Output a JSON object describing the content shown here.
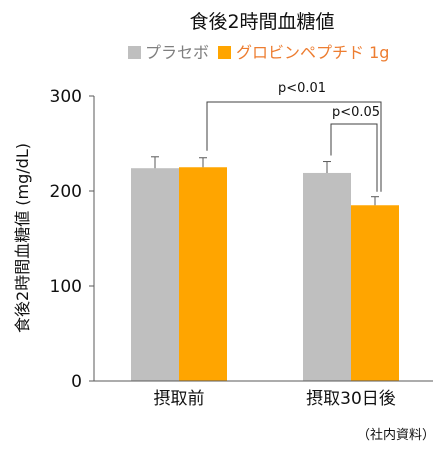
{
  "colors": {
    "placebo": "#bfbfbf",
    "globin": "#ffa500",
    "axis": "#595959",
    "bracket": "#404040",
    "legend_orange_text": "#ed7d31"
  },
  "chart_data": {
    "type": "bar",
    "title": "食後2時間血糖値",
    "ylabel": "食後2時間血糖値 (mg/dL)",
    "xlabel": "",
    "ylim": [
      0,
      300
    ],
    "yticks": [
      "0",
      "100",
      "200",
      "300"
    ],
    "categories": [
      "摂取前",
      "摂取30日後"
    ],
    "series": [
      {
        "name": "プラセボ",
        "values": [
          224,
          219
        ],
        "errors": [
          12,
          12
        ]
      },
      {
        "name": "グロビンペプチド 1g",
        "values": [
          225,
          185
        ],
        "errors": [
          10,
          9
        ]
      }
    ],
    "annotations": [
      "p<0.01",
      "p<0.05"
    ],
    "source": "（社内資料）"
  }
}
